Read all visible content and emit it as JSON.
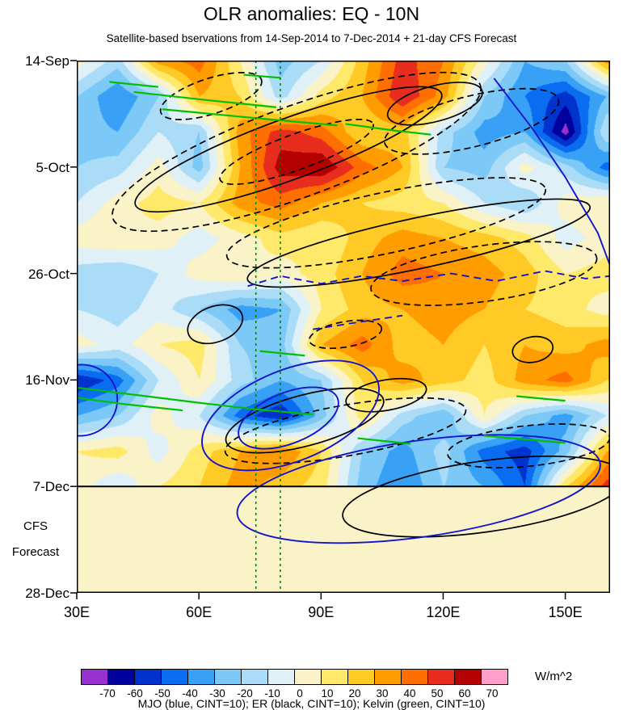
{
  "header": {
    "title": "OLR anomalies: EQ - 10N",
    "subtitle": "Satellite-based bservations from 14-Sep-2014 to 7-Dec-2014 + 21-day CFS Forecast"
  },
  "chart_data": {
    "type": "heatmap",
    "title": "OLR anomalies: EQ - 10N",
    "subtitle": "Satellite-based bservations from 14-Sep-2014 to 7-Dec-2014 + 21-day CFS Forecast",
    "x_range_lon": [
      30,
      161
    ],
    "y_range_days": [
      0,
      105
    ],
    "obs_end_day": 84,
    "forecast_fill_value": 5,
    "x_ticks": [
      {
        "label": "30E",
        "lon": 30
      },
      {
        "label": "60E",
        "lon": 60
      },
      {
        "label": "90E",
        "lon": 90
      },
      {
        "label": "120E",
        "lon": 120
      },
      {
        "label": "150E",
        "lon": 150
      }
    ],
    "y_ticks": [
      {
        "label": "14-Sep",
        "day": 0
      },
      {
        "label": "5-Oct",
        "day": 21
      },
      {
        "label": "26-Oct",
        "day": 42
      },
      {
        "label": "16-Nov",
        "day": 63
      },
      {
        "label": "7-Dec",
        "day": 84
      },
      {
        "label": "28-Dec",
        "day": 105
      }
    ],
    "forecast_annotation": {
      "line1": "CFS",
      "line2": "Forecast",
      "day1": 92,
      "day2": 97
    },
    "grid": {
      "lons": [
        30,
        40,
        50,
        60,
        70,
        80,
        90,
        100,
        110,
        120,
        130,
        140,
        150,
        160
      ],
      "days": [
        0,
        7,
        14,
        21,
        28,
        35,
        42,
        49,
        56,
        63,
        70,
        77,
        84
      ],
      "values": [
        [
          5,
          -15,
          35,
          45,
          10,
          -25,
          -10,
          25,
          55,
          40,
          5,
          -30,
          -20,
          35
        ],
        [
          -20,
          -40,
          -20,
          30,
          20,
          -15,
          15,
          30,
          60,
          35,
          -20,
          -40,
          -55,
          -30
        ],
        [
          -25,
          -30,
          -10,
          -20,
          35,
          55,
          45,
          20,
          25,
          -15,
          -35,
          -30,
          -75,
          -10
        ],
        [
          -20,
          -15,
          5,
          -25,
          30,
          65,
          70,
          45,
          30,
          -20,
          -25,
          5,
          -15,
          -45
        ],
        [
          -10,
          5,
          15,
          10,
          35,
          45,
          30,
          20,
          15,
          10,
          -10,
          -20,
          5,
          10
        ],
        [
          5,
          10,
          5,
          -5,
          5,
          15,
          10,
          25,
          35,
          30,
          25,
          15,
          -5,
          5
        ],
        [
          -15,
          -20,
          -10,
          5,
          10,
          5,
          15,
          30,
          45,
          40,
          35,
          25,
          10,
          15
        ],
        [
          -10,
          -15,
          -5,
          -20,
          -35,
          -30,
          10,
          25,
          30,
          35,
          30,
          20,
          15,
          5
        ],
        [
          5,
          -5,
          10,
          15,
          -20,
          -25,
          30,
          45,
          25,
          30,
          20,
          30,
          25,
          35
        ],
        [
          -60,
          -45,
          -10,
          10,
          -15,
          -30,
          -20,
          20,
          35,
          25,
          15,
          35,
          45,
          20
        ],
        [
          -30,
          -20,
          5,
          -10,
          -45,
          -60,
          -25,
          15,
          -15,
          -30,
          10,
          -20,
          -35,
          -10
        ],
        [
          10,
          15,
          -5,
          15,
          30,
          40,
          20,
          -20,
          -35,
          -15,
          -45,
          -55,
          -25,
          30
        ],
        [
          5,
          -10,
          10,
          20,
          35,
          25,
          15,
          -25,
          -40,
          -20,
          -30,
          -50,
          20,
          55
        ]
      ]
    },
    "colorbar": {
      "levels": [
        -70,
        -60,
        -50,
        -40,
        -30,
        -20,
        -10,
        0,
        10,
        20,
        30,
        40,
        50,
        60,
        70
      ],
      "colors": [
        "#9b30d0",
        "#00009c",
        "#0032cd",
        "#0a6cf0",
        "#38a1f5",
        "#7cc8f7",
        "#aadcf7",
        "#dff1f7",
        "#faf3c8",
        "#ffe96b",
        "#ffc926",
        "#ff9c00",
        "#ff6e00",
        "#e82c1e",
        "#b40000",
        "#ff9ec8"
      ],
      "unit": "W/m^2"
    },
    "reference_lines": {
      "vertical_lons": [
        74,
        80
      ],
      "horizontal_day": 84
    },
    "legend_caption": "MJO (blue, CINT=10); ER (black, CINT=10); Kelvin (green, CINT=10)",
    "overlays": [
      {
        "type": "ellipse",
        "name": "er-contour-solid",
        "color": "#000000",
        "lon": 82,
        "day": 17.5,
        "rx_deg": 40,
        "ry_days": 6,
        "rot": -20,
        "width": 1.7
      },
      {
        "type": "ellipse",
        "name": "er-contour-solid",
        "color": "#000000",
        "lon": 118,
        "day": 8.5,
        "rx_deg": 12,
        "ry_days": 3.5,
        "rot": -15,
        "width": 1.7
      },
      {
        "type": "ellipse",
        "name": "er-contour-solid",
        "color": "#000000",
        "lon": 114,
        "day": 36,
        "rx_deg": 43,
        "ry_days": 5,
        "rot": -12,
        "width": 1.7
      },
      {
        "type": "ellipse",
        "name": "er-contour-solid",
        "color": "#000000",
        "lon": 64,
        "day": 52,
        "rx_deg": 7,
        "ry_days": 3.5,
        "rot": -20,
        "width": 1.7
      },
      {
        "type": "ellipse",
        "name": "er-contour-solid",
        "color": "#000000",
        "lon": 86,
        "day": 71,
        "rx_deg": 20,
        "ry_days": 5,
        "rot": -15,
        "width": 1.7
      },
      {
        "type": "ellipse",
        "name": "er-contour-solid",
        "color": "#000000",
        "lon": 106,
        "day": 66,
        "rx_deg": 10,
        "ry_days": 3,
        "rot": -10,
        "width": 1.7
      },
      {
        "type": "ellipse",
        "name": "er-contour-solid",
        "color": "#000000",
        "lon": 130,
        "day": 86,
        "rx_deg": 35,
        "ry_days": 7,
        "rot": -8,
        "width": 1.7
      },
      {
        "type": "ellipse",
        "name": "er-contour-solid",
        "color": "#000000",
        "lon": 142,
        "day": 57,
        "rx_deg": 5,
        "ry_days": 2.5,
        "rot": -10,
        "width": 1.7
      },
      {
        "type": "ellipse",
        "name": "er-contour-dashed",
        "color": "#000000",
        "dash": "8 5",
        "lon": 84,
        "day": 18,
        "rx_deg": 48,
        "ry_days": 9,
        "rot": -20,
        "width": 1.7
      },
      {
        "type": "ellipse",
        "name": "er-contour-dashed",
        "color": "#000000",
        "dash": "8 5",
        "lon": 84,
        "day": 18,
        "rx_deg": 20,
        "ry_days": 3.5,
        "rot": -20,
        "width": 1.7
      },
      {
        "type": "ellipse",
        "name": "er-contour-dashed",
        "color": "#000000",
        "dash": "8 5",
        "lon": 63,
        "day": 7,
        "rx_deg": 13,
        "ry_days": 3.5,
        "rot": -18,
        "width": 1.7
      },
      {
        "type": "ellipse",
        "name": "er-contour-dashed",
        "color": "#000000",
        "dash": "8 5",
        "lon": 127,
        "day": 12,
        "rx_deg": 22,
        "ry_days": 5,
        "rot": -14,
        "width": 1.7
      },
      {
        "type": "ellipse",
        "name": "er-contour-dashed",
        "color": "#000000",
        "dash": "8 5",
        "lon": 106,
        "day": 32,
        "rx_deg": 40,
        "ry_days": 6,
        "rot": -12,
        "width": 1.7
      },
      {
        "type": "ellipse",
        "name": "er-contour-dashed",
        "color": "#000000",
        "dash": "8 5",
        "lon": 130,
        "day": 42,
        "rx_deg": 28,
        "ry_days": 5.5,
        "rot": -8,
        "width": 1.7
      },
      {
        "type": "ellipse",
        "name": "er-contour-dashed",
        "color": "#000000",
        "dash": "8 5",
        "lon": 96,
        "day": 54,
        "rx_deg": 9,
        "ry_days": 2.5,
        "rot": -10,
        "width": 1.7
      },
      {
        "type": "ellipse",
        "name": "er-contour-dashed",
        "color": "#000000",
        "dash": "8 5",
        "lon": 96,
        "day": 73,
        "rx_deg": 30,
        "ry_days": 5,
        "rot": -10,
        "width": 1.7
      },
      {
        "type": "ellipse",
        "name": "er-contour-dashed",
        "color": "#000000",
        "dash": "8 5",
        "lon": 141,
        "day": 76,
        "rx_deg": 20,
        "ry_days": 4,
        "rot": -6,
        "width": 1.7
      },
      {
        "type": "polyline",
        "name": "mjo-contour-solid",
        "color": "#1414cc",
        "width": 1.9,
        "points": [
          [
            132.5,
            3.5
          ],
          [
            142,
            13.5
          ],
          [
            150,
            23
          ],
          [
            158,
            34
          ],
          [
            161.5,
            41.5
          ]
        ]
      },
      {
        "type": "ellipse",
        "name": "mjo-contour-solid",
        "color": "#1414cc",
        "lon": 82.5,
        "day": 70,
        "rx_deg": 23,
        "ry_days": 9,
        "rot": -22,
        "width": 1.9
      },
      {
        "type": "ellipse",
        "name": "mjo-contour-solid",
        "color": "#1414cc",
        "lon": 82,
        "day": 70.5,
        "rx_deg": 13,
        "ry_days": 5,
        "rot": -22,
        "width": 1.9
      },
      {
        "type": "ellipse",
        "name": "mjo-contour-solid",
        "color": "#1414cc",
        "lon": 114,
        "day": 84.5,
        "rx_deg": 45,
        "ry_days": 9.5,
        "rot": -8,
        "width": 1.9
      },
      {
        "type": "ellipse",
        "name": "mjo-contour-solid",
        "color": "#1414cc",
        "lon": 31,
        "day": 67,
        "rx_deg": 9,
        "ry_days": 7,
        "rot": -20,
        "width": 1.9
      },
      {
        "type": "polyline",
        "name": "mjo-contour-dashed",
        "color": "#1414cc",
        "dash": "9 6",
        "width": 1.9,
        "points": [
          [
            72,
            44.5
          ],
          [
            80,
            42.5
          ],
          [
            90,
            44
          ],
          [
            100,
            42.5
          ],
          [
            110,
            43.5
          ],
          [
            122,
            42
          ],
          [
            133,
            43.5
          ],
          [
            145,
            41.5
          ],
          [
            155,
            43
          ],
          [
            161,
            42.5
          ]
        ]
      },
      {
        "type": "polyline",
        "name": "mjo-contour-dashed",
        "color": "#1414cc",
        "dash": "9 6",
        "width": 1.9,
        "points": [
          [
            88,
            53
          ],
          [
            100,
            51.5
          ],
          [
            110,
            50.3
          ]
        ]
      },
      {
        "type": "polyline",
        "name": "kelvin-contour",
        "color": "#00c000",
        "width": 2.2,
        "points": [
          [
            44,
            6.2
          ],
          [
            62,
            7.8
          ],
          [
            79,
            9.2
          ]
        ]
      },
      {
        "type": "polyline",
        "name": "kelvin-contour",
        "color": "#00c000",
        "width": 2.2,
        "points": [
          [
            51,
            9.6
          ],
          [
            72,
            11.2
          ],
          [
            94,
            12.8
          ]
        ]
      },
      {
        "type": "polyline",
        "name": "kelvin-contour",
        "color": "#00c000",
        "width": 2.2,
        "points": [
          [
            96,
            12.5
          ],
          [
            108,
            13.8
          ],
          [
            117,
            14.6
          ]
        ]
      },
      {
        "type": "polyline",
        "name": "kelvin-contour",
        "color": "#00c000",
        "width": 2.2,
        "points": [
          [
            71,
            2.8
          ],
          [
            80,
            3.4
          ]
        ]
      },
      {
        "type": "polyline",
        "name": "kelvin-contour",
        "color": "#00c000",
        "width": 2.2,
        "points": [
          [
            38,
            4.2
          ],
          [
            50,
            5.2
          ]
        ]
      },
      {
        "type": "polyline",
        "name": "kelvin-contour",
        "color": "#00c000",
        "width": 2.2,
        "points": [
          [
            30,
            64.5
          ],
          [
            45,
            66
          ],
          [
            60,
            67.5
          ],
          [
            74,
            68.8
          ],
          [
            88,
            69.8
          ]
        ]
      },
      {
        "type": "polyline",
        "name": "kelvin-contour",
        "color": "#00c000",
        "width": 2.2,
        "points": [
          [
            30,
            66.5
          ],
          [
            42,
            67.8
          ],
          [
            56,
            69
          ]
        ]
      },
      {
        "type": "polyline",
        "name": "kelvin-contour",
        "color": "#00c000",
        "width": 2.2,
        "points": [
          [
            75,
            57.3
          ],
          [
            86,
            58.2
          ]
        ]
      },
      {
        "type": "polyline",
        "name": "kelvin-contour",
        "color": "#00c000",
        "width": 2.2,
        "points": [
          [
            99,
            74.5
          ],
          [
            112,
            75.6
          ]
        ]
      },
      {
        "type": "polyline",
        "name": "kelvin-contour",
        "color": "#00c000",
        "width": 2.2,
        "points": [
          [
            130,
            74
          ],
          [
            150,
            75.4
          ]
        ]
      },
      {
        "type": "polyline",
        "name": "kelvin-contour",
        "color": "#00c000",
        "width": 2.2,
        "points": [
          [
            138,
            66.2
          ],
          [
            150,
            67.1
          ]
        ]
      }
    ]
  }
}
